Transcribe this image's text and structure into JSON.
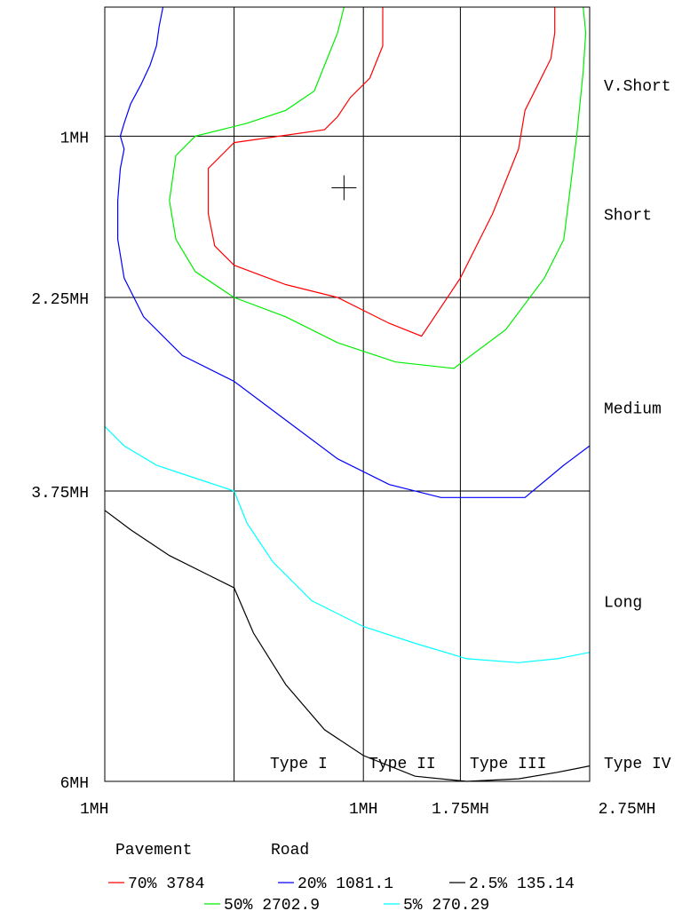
{
  "chart_data": {
    "type": "line",
    "title": "",
    "y_tick_labels": [
      {
        "label": "1MH",
        "value": 1
      },
      {
        "label": "2.25MH",
        "value": 2.25
      },
      {
        "label": "3.75MH",
        "value": 3.75
      },
      {
        "label": "6MH",
        "value": 6
      }
    ],
    "x_tick_labels": [
      {
        "label": "1MH",
        "value": 0
      },
      {
        "label": "1MH",
        "value": 1
      },
      {
        "label": "1.75MH",
        "value": 1.75
      },
      {
        "label": "2.75MH",
        "value": 2.75
      }
    ],
    "zone_labels_right": [
      {
        "label": "V.Short",
        "value": 0.6
      },
      {
        "label": "Short",
        "value": 1.6
      },
      {
        "label": "Medium",
        "value": 3.1
      },
      {
        "label": "Long",
        "value": 4.6
      },
      {
        "label": "Type IV",
        "value": 5.85
      }
    ],
    "zone_labels_bottom": [
      {
        "label": "Type I",
        "value": 0.5
      },
      {
        "label": "Type II",
        "value": 1.3
      },
      {
        "label": "Type III",
        "value": 2.12
      }
    ],
    "xlim": [
      -1,
      2.75
    ],
    "ylim": [
      0,
      6
    ],
    "x_grid": [
      0,
      1,
      1.75
    ],
    "y_grid": [
      1,
      2.25,
      3.75
    ],
    "grid": true,
    "y_reversed": true,
    "cursor_marker": {
      "x": 0.85,
      "y": 1.4
    },
    "legend": {
      "title_left": "Pavement",
      "title_right": "Road",
      "placement": "bottom",
      "entries": [
        {
          "label": "70% 3784",
          "color": "#ff0000"
        },
        {
          "label": "20% 1081.1",
          "color": "#0000ff"
        },
        {
          "label": "2.5% 135.14",
          "color": "#000000"
        },
        {
          "label": "50% 2702.9",
          "color": "#00ee00"
        },
        {
          "label": "5% 270.29",
          "color": "#00ffff"
        }
      ]
    },
    "series": [
      {
        "color": "#ff0000",
        "points": [
          [
            1.15,
            0
          ],
          [
            1.15,
            0.3
          ],
          [
            1.05,
            0.55
          ],
          [
            0.9,
            0.7
          ],
          [
            0.8,
            0.85
          ],
          [
            0.7,
            0.95
          ],
          [
            0,
            1.05
          ],
          [
            -0.2,
            1.25
          ],
          [
            -0.2,
            1.6
          ],
          [
            -0.15,
            1.85
          ],
          [
            0,
            2.0
          ],
          [
            0.4,
            2.15
          ],
          [
            0.8,
            2.25
          ],
          [
            1.2,
            2.45
          ],
          [
            1.45,
            2.55
          ],
          [
            1.75,
            2.1
          ],
          [
            2.0,
            1.6
          ],
          [
            2.2,
            1.1
          ],
          [
            2.25,
            0.8
          ],
          [
            2.35,
            0.6
          ],
          [
            2.45,
            0.4
          ],
          [
            2.48,
            0.2
          ],
          [
            2.48,
            0
          ]
        ]
      },
      {
        "color": "#00ee00",
        "points": [
          [
            0.85,
            0
          ],
          [
            0.8,
            0.2
          ],
          [
            0.72,
            0.4
          ],
          [
            0.62,
            0.65
          ],
          [
            0.4,
            0.8
          ],
          [
            0.1,
            0.9
          ],
          [
            -0.3,
            1.0
          ],
          [
            -0.45,
            1.15
          ],
          [
            -0.5,
            1.5
          ],
          [
            -0.45,
            1.8
          ],
          [
            -0.3,
            2.05
          ],
          [
            0,
            2.25
          ],
          [
            0.4,
            2.4
          ],
          [
            0.8,
            2.6
          ],
          [
            1.25,
            2.75
          ],
          [
            1.7,
            2.8
          ],
          [
            2.1,
            2.5
          ],
          [
            2.4,
            2.1
          ],
          [
            2.55,
            1.8
          ],
          [
            2.6,
            1.4
          ],
          [
            2.65,
            1.0
          ],
          [
            2.7,
            0.5
          ],
          [
            2.72,
            0.2
          ],
          [
            2.7,
            0
          ]
        ]
      },
      {
        "color": "#0000ff",
        "points": [
          [
            -0.55,
            0
          ],
          [
            -0.58,
            0.15
          ],
          [
            -0.6,
            0.3
          ],
          [
            -0.65,
            0.45
          ],
          [
            -0.72,
            0.6
          ],
          [
            -0.8,
            0.75
          ],
          [
            -0.85,
            0.9
          ],
          [
            -0.88,
            1.0
          ],
          [
            -0.85,
            1.1
          ],
          [
            -0.88,
            1.25
          ],
          [
            -0.9,
            1.5
          ],
          [
            -0.9,
            1.8
          ],
          [
            -0.85,
            2.1
          ],
          [
            -0.7,
            2.4
          ],
          [
            -0.4,
            2.7
          ],
          [
            0,
            2.9
          ],
          [
            0.4,
            3.2
          ],
          [
            0.8,
            3.5
          ],
          [
            1.2,
            3.7
          ],
          [
            1.6,
            3.8
          ],
          [
            2.0,
            3.8
          ],
          [
            2.25,
            3.8
          ],
          [
            2.55,
            3.55
          ],
          [
            2.75,
            3.4
          ]
        ]
      },
      {
        "color": "#00ffff",
        "points": [
          [
            -1,
            3.25
          ],
          [
            -0.85,
            3.4
          ],
          [
            -0.6,
            3.55
          ],
          [
            -0.3,
            3.65
          ],
          [
            0,
            3.75
          ],
          [
            0.1,
            4.0
          ],
          [
            0.3,
            4.3
          ],
          [
            0.6,
            4.6
          ],
          [
            1.0,
            4.8
          ],
          [
            1.4,
            4.93
          ],
          [
            1.8,
            5.05
          ],
          [
            2.2,
            5.08
          ],
          [
            2.5,
            5.05
          ],
          [
            2.75,
            5.0
          ]
        ]
      },
      {
        "color": "#000000",
        "points": [
          [
            -1,
            3.9
          ],
          [
            -0.8,
            4.05
          ],
          [
            -0.5,
            4.25
          ],
          [
            -0.2,
            4.4
          ],
          [
            0,
            4.5
          ],
          [
            0.15,
            4.85
          ],
          [
            0.4,
            5.25
          ],
          [
            0.7,
            5.6
          ],
          [
            1.0,
            5.8
          ],
          [
            1.4,
            5.96
          ],
          [
            1.8,
            6.0
          ],
          [
            2.2,
            5.98
          ],
          [
            2.5,
            5.93
          ],
          [
            2.75,
            5.88
          ]
        ]
      }
    ]
  }
}
